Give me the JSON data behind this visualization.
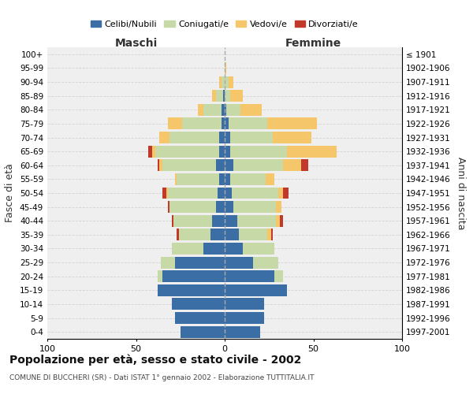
{
  "age_groups": [
    "0-4",
    "5-9",
    "10-14",
    "15-19",
    "20-24",
    "25-29",
    "30-34",
    "35-39",
    "40-44",
    "45-49",
    "50-54",
    "55-59",
    "60-64",
    "65-69",
    "70-74",
    "75-79",
    "80-84",
    "85-89",
    "90-94",
    "95-99",
    "100+"
  ],
  "birth_years": [
    "1997-2001",
    "1992-1996",
    "1987-1991",
    "1982-1986",
    "1977-1981",
    "1972-1976",
    "1967-1971",
    "1962-1966",
    "1957-1961",
    "1952-1956",
    "1947-1951",
    "1942-1946",
    "1937-1941",
    "1932-1936",
    "1927-1931",
    "1922-1926",
    "1917-1921",
    "1912-1916",
    "1907-1911",
    "1902-1906",
    "≤ 1901"
  ],
  "males": {
    "celibi": [
      25,
      28,
      30,
      38,
      35,
      28,
      12,
      8,
      7,
      5,
      4,
      3,
      5,
      3,
      3,
      2,
      2,
      1,
      0,
      0,
      0
    ],
    "coniugati": [
      0,
      0,
      0,
      0,
      3,
      8,
      18,
      18,
      22,
      26,
      28,
      24,
      30,
      36,
      28,
      22,
      10,
      4,
      2,
      0,
      0
    ],
    "vedovi": [
      0,
      0,
      0,
      0,
      0,
      0,
      0,
      0,
      0,
      0,
      1,
      1,
      2,
      2,
      6,
      8,
      3,
      2,
      1,
      0,
      0
    ],
    "divorziati": [
      0,
      0,
      0,
      0,
      0,
      0,
      0,
      1,
      1,
      1,
      2,
      0,
      1,
      2,
      0,
      0,
      0,
      0,
      0,
      0,
      0
    ]
  },
  "females": {
    "nubili": [
      20,
      22,
      22,
      35,
      28,
      16,
      10,
      8,
      7,
      5,
      4,
      3,
      5,
      3,
      3,
      2,
      1,
      0,
      0,
      0,
      0
    ],
    "coniugate": [
      0,
      0,
      0,
      0,
      5,
      14,
      18,
      16,
      22,
      24,
      26,
      20,
      28,
      32,
      24,
      22,
      8,
      3,
      2,
      0,
      0
    ],
    "vedove": [
      0,
      0,
      0,
      0,
      0,
      0,
      0,
      2,
      2,
      3,
      3,
      5,
      10,
      28,
      22,
      28,
      12,
      7,
      3,
      1,
      0
    ],
    "divorziate": [
      0,
      0,
      0,
      0,
      0,
      0,
      0,
      1,
      2,
      0,
      3,
      0,
      4,
      0,
      0,
      0,
      0,
      0,
      0,
      0,
      0
    ]
  },
  "colors": {
    "celibi": "#3b6ea5",
    "coniugati": "#c8d9a8",
    "vedovi": "#f5c76a",
    "divorziati": "#c0392b"
  },
  "xlim": 100,
  "title": "Popolazione per età, sesso e stato civile - 2002",
  "subtitle": "COMUNE DI BUCCHERI (SR) - Dati ISTAT 1° gennaio 2002 - Elaborazione TUTTITALIA.IT",
  "ylabel_left": "Fasce di età",
  "ylabel_right": "Anni di nascita",
  "xlabel_left": "Maschi",
  "xlabel_right": "Femmine",
  "background_color": "#efefef",
  "grid_color": "#cccccc"
}
